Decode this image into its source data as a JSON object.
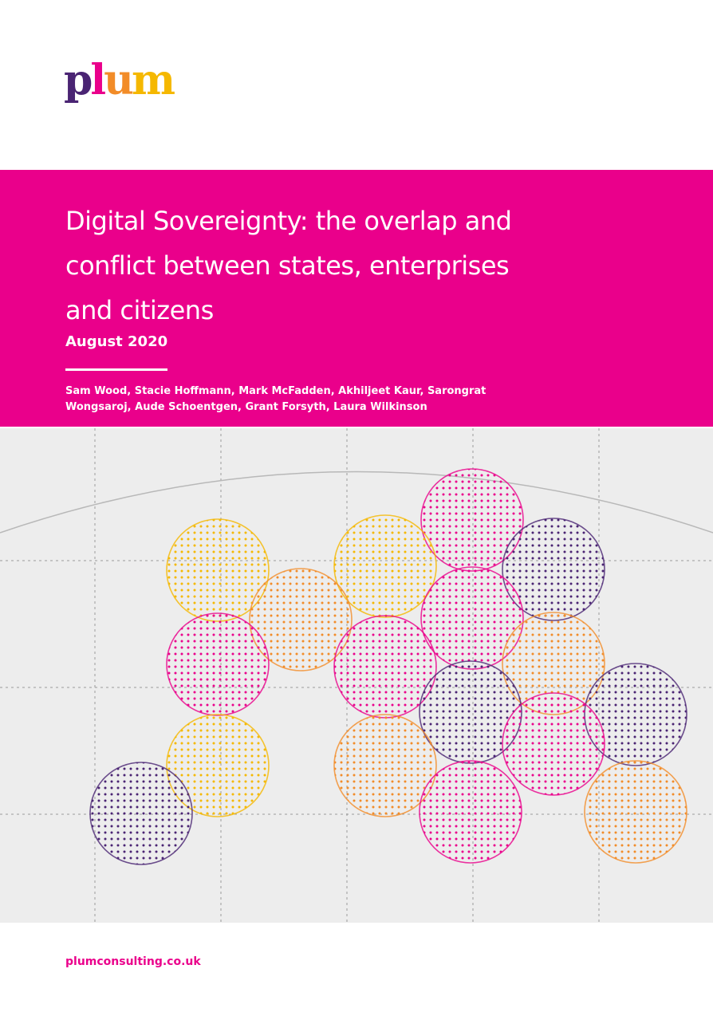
{
  "logo": {
    "letters": [
      {
        "char": "p",
        "color": "#4a2473"
      },
      {
        "char": "l",
        "color": "#ea008b"
      },
      {
        "char": "u",
        "color": "#f28c28"
      },
      {
        "char": "m",
        "color": "#f5b800"
      }
    ]
  },
  "banner": {
    "title_lines": [
      "Digital Sovereignty: the overlap and",
      "conflict between states, enterprises",
      "and citizens"
    ],
    "date": "August 2020",
    "authors_lines": [
      "Sam Wood, Stacie Hoffmann, Mark McFadden, Akhiljeet Kaur, Sarongrat",
      "Wongsaroj, Aude Schoentgen, Grant Forsyth, Laura Wilkinson"
    ]
  },
  "colors": {
    "brand_pink": "#ea008b",
    "purple": "#4a2473",
    "orange": "#f28c28",
    "yellow": "#f5b800",
    "art_background": "#ededed"
  },
  "footer": {
    "url": "plumconsulting.co.uk"
  }
}
